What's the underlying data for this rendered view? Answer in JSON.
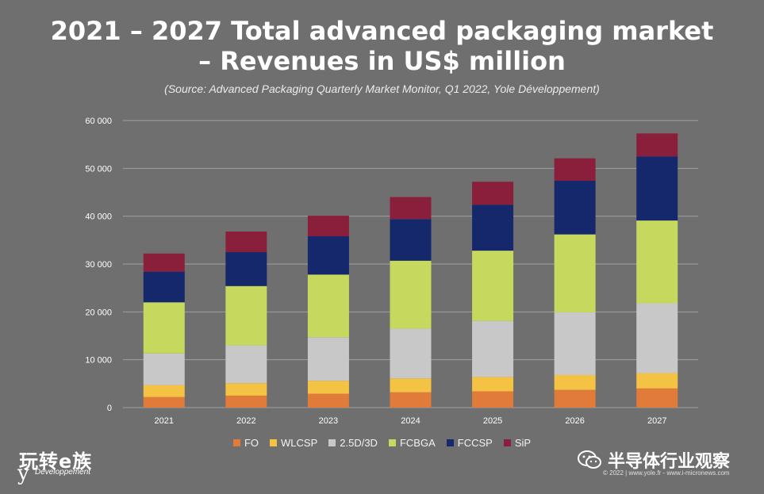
{
  "title_line1": "2021 – 2027 Total advanced packaging market",
  "title_line2": "– Revenues in US$ million",
  "subtitle": "(Source: Advanced Packaging Quarterly Market Monitor, Q1 2022, Yole Développement)",
  "chart_data": {
    "type": "bar",
    "stacked": true,
    "categories": [
      "2021",
      "2022",
      "2023",
      "2024",
      "2025",
      "2026",
      "2027"
    ],
    "series": [
      {
        "name": "FO",
        "color": "#e07b39",
        "values": [
          2200,
          2500,
          2900,
          3200,
          3400,
          3700,
          4000
        ]
      },
      {
        "name": "WLCSP",
        "color": "#f5c343",
        "values": [
          2500,
          2600,
          2700,
          2900,
          3000,
          3100,
          3200
        ]
      },
      {
        "name": "2.5D/3D",
        "color": "#c8c8c8",
        "values": [
          6600,
          7900,
          9100,
          10400,
          11700,
          13100,
          14600
        ]
      },
      {
        "name": "FCBGA",
        "color": "#c7d85f",
        "values": [
          10700,
          12400,
          13100,
          14200,
          14700,
          16300,
          17300
        ]
      },
      {
        "name": "FCCSP",
        "color": "#14286b",
        "values": [
          6400,
          7100,
          8000,
          8700,
          9600,
          11200,
          13400
        ]
      },
      {
        "name": "SiP",
        "color": "#8a1f3c",
        "values": [
          3800,
          4300,
          4300,
          4600,
          4800,
          4700,
          4800
        ]
      }
    ],
    "yticks": [
      "0",
      "10 000",
      "20 000",
      "30 000",
      "40 000",
      "50 000",
      "60 000"
    ],
    "ylim": [
      0,
      60000
    ],
    "grid": true,
    "legend_position": "bottom"
  },
  "branding": {
    "logo_text": "玩转e族",
    "logo_sub": "Développement",
    "logo_mark": "y",
    "wechat_name": "半导体行业观察",
    "copyright": "© 2022 | www.yole.fr - www.i-micronews.com"
  }
}
